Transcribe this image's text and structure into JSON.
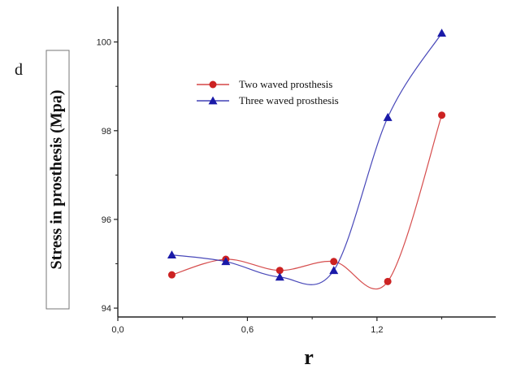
{
  "panel_label": "d",
  "chart_data": {
    "type": "line",
    "xlabel": "r",
    "ylabel": "Stress in prosthesis (Mpa)",
    "xlim": [
      0.0,
      1.75
    ],
    "ylim": [
      93.8,
      100.8
    ],
    "x_ticks": [
      0.0,
      0.6,
      1.2
    ],
    "x_tick_labels": [
      "0,0",
      "0,6",
      "1,2"
    ],
    "y_ticks": [
      94,
      96,
      98,
      100
    ],
    "y_tick_labels": [
      "94",
      "96",
      "98",
      "100"
    ],
    "legend_position": "upper-center",
    "series": [
      {
        "name": "Two waved prosthesis",
        "color": "#cc2222",
        "marker": "circle",
        "x": [
          0.25,
          0.5,
          0.75,
          1.0,
          1.25,
          1.5
        ],
        "y": [
          94.75,
          95.1,
          94.85,
          95.05,
          94.6,
          98.35
        ]
      },
      {
        "name": "Three waved prosthesis",
        "color": "#1a1aa8",
        "marker": "triangle",
        "x": [
          0.25,
          0.5,
          0.75,
          1.0,
          1.25,
          1.5
        ],
        "y": [
          95.2,
          95.05,
          94.7,
          94.85,
          98.3,
          100.2
        ]
      }
    ]
  }
}
